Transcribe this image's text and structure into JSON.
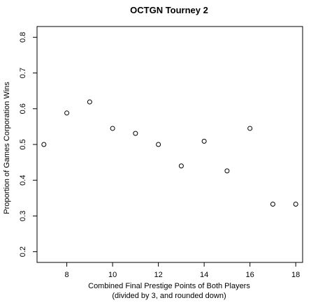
{
  "chart_data": {
    "type": "scatter",
    "title": "OCTGN Tourney 2",
    "xlabel_line1": "Combined Final Prestige Points of Both Players",
    "xlabel_line2": "(divided by 3, and rounded down)",
    "ylabel": "Proportion of Games Corporation Wins",
    "xlim": [
      6.7,
      18.3
    ],
    "ylim": [
      0.17,
      0.83
    ],
    "x_ticks": [
      8,
      10,
      12,
      14,
      16,
      18
    ],
    "y_ticks": [
      0.2,
      0.3,
      0.4,
      0.5,
      0.6,
      0.7,
      0.8
    ],
    "points": [
      {
        "x": 7,
        "y": 0.5
      },
      {
        "x": 8,
        "y": 0.588
      },
      {
        "x": 9,
        "y": 0.619
      },
      {
        "x": 10,
        "y": 0.545
      },
      {
        "x": 11,
        "y": 0.531
      },
      {
        "x": 12,
        "y": 0.5
      },
      {
        "x": 13,
        "y": 0.44
      },
      {
        "x": 14,
        "y": 0.509
      },
      {
        "x": 15,
        "y": 0.426
      },
      {
        "x": 16,
        "y": 0.545
      },
      {
        "x": 17,
        "y": 0.333
      },
      {
        "x": 18,
        "y": 0.333
      }
    ],
    "marker": "open-circle",
    "grid": false
  }
}
